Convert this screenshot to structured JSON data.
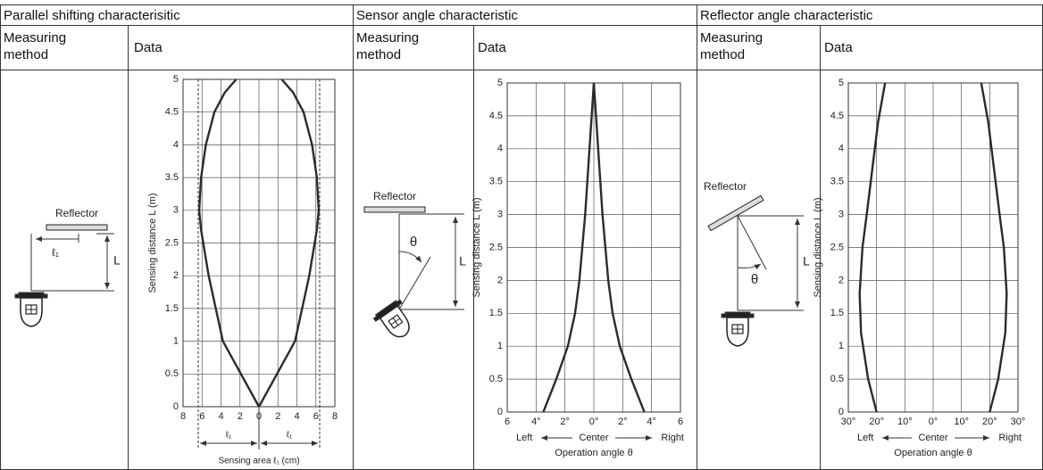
{
  "table": {
    "headers": [
      "Parallel shifting characterisitic",
      "Sensor angle characteristic",
      "Reflector angle characteristic"
    ],
    "subheaders": [
      "Measuring method",
      "Data",
      "Measuring method",
      "Data",
      "Measuring method",
      "Data"
    ]
  },
  "diagrams": [
    {
      "reflector": "Reflector",
      "offset": "ℓ₁",
      "distance": "L"
    },
    {
      "reflector": "Reflector",
      "angle": "θ",
      "distance": "L"
    },
    {
      "reflector": "Reflector",
      "distance": "L",
      "angle": "θ"
    }
  ],
  "chart_data": [
    {
      "type": "line",
      "xlabel": "Sensing area ℓ₁ (cm)",
      "ylabel": "Sensing distance L (m)",
      "span_labels": [
        "ℓ₁",
        "ℓ₁"
      ],
      "xlim": [
        -8,
        8
      ],
      "ylim": [
        0,
        5
      ],
      "grid": true,
      "xticks": [
        {
          "value": -8,
          "label": "8"
        },
        {
          "value": -6,
          "label": "6"
        },
        {
          "value": -4,
          "label": "4"
        },
        {
          "value": -2,
          "label": "2"
        },
        0,
        2,
        4,
        6,
        8
      ],
      "yticks": [
        0,
        0.5,
        1,
        1.5,
        2,
        2.5,
        3,
        3.5,
        4,
        4.5,
        5
      ],
      "series": [
        {
          "color": "#2b2b2b",
          "x": [
            0,
            -1.9,
            -3.8,
            -5.3,
            -6.1,
            -6.3,
            -6.1,
            -5.6,
            -4.7,
            -3.6,
            -2.4
          ],
          "values": [
            0,
            0.5,
            1,
            2,
            2.7,
            3,
            3.5,
            4,
            4.5,
            4.8,
            5
          ]
        },
        {
          "color": "#2b2b2b",
          "x": [
            0,
            1.9,
            3.8,
            5.3,
            6.1,
            6.3,
            6.1,
            5.6,
            4.7,
            3.6,
            2.4
          ],
          "values": [
            0,
            0.5,
            1,
            2,
            2.7,
            3,
            3.5,
            4,
            4.5,
            4.8,
            5
          ]
        }
      ]
    },
    {
      "type": "line",
      "xlabel": "Operation angle θ",
      "ylabel": "Sensing distance L (m)",
      "direction_labels": [
        "Left",
        "Center",
        "Right"
      ],
      "xlim": [
        -6,
        6
      ],
      "ylim": [
        0,
        5
      ],
      "grid": true,
      "xticks": [
        {
          "value": -6,
          "label": "6"
        },
        {
          "value": -4,
          "label": "4°"
        },
        {
          "value": -2,
          "label": "2°"
        },
        {
          "value": 0,
          "label": "0°"
        },
        {
          "value": 2,
          "label": "2°"
        },
        {
          "value": 4,
          "label": "4°"
        },
        6
      ],
      "yticks": [
        0,
        0.5,
        1,
        1.5,
        2,
        2.5,
        3,
        3.5,
        4,
        4.5,
        5
      ],
      "series": [
        {
          "color": "#2b2b2b",
          "x": [
            -3.5,
            -2.6,
            -1.8,
            -1.3,
            -1.0,
            -0.6,
            -0.3,
            0
          ],
          "values": [
            0,
            0.5,
            1,
            1.5,
            2,
            3,
            4,
            5
          ]
        },
        {
          "color": "#2b2b2b",
          "x": [
            3.5,
            2.6,
            1.8,
            1.3,
            1.0,
            0.6,
            0.3,
            0
          ],
          "values": [
            0,
            0.5,
            1,
            1.5,
            2,
            3,
            4,
            5
          ]
        }
      ]
    },
    {
      "type": "line",
      "xlabel": "Operation angle θ",
      "ylabel": "Sensing distance L (m)",
      "direction_labels": [
        "Left",
        "Center",
        "Right"
      ],
      "xlim": [
        -30,
        30
      ],
      "ylim": [
        0,
        5
      ],
      "grid": true,
      "xticks": [
        {
          "value": -30,
          "label": "30°"
        },
        {
          "value": -20,
          "label": "20°"
        },
        {
          "value": -10,
          "label": "10°"
        },
        {
          "value": 0,
          "label": "0°"
        },
        {
          "value": 10,
          "label": "10°"
        },
        {
          "value": 20,
          "label": "20°"
        },
        {
          "value": 30,
          "label": "30°"
        }
      ],
      "yticks": [
        0,
        0.5,
        1,
        1.5,
        2,
        2.5,
        3,
        3.5,
        4,
        4.5,
        5
      ],
      "series": [
        {
          "color": "#2b2b2b",
          "x": [
            -20,
            -23,
            -25.5,
            -26,
            -25,
            -23.5,
            -21.5,
            -19.5,
            -17
          ],
          "values": [
            0,
            0.5,
            1.2,
            1.8,
            2.5,
            3,
            3.7,
            4.4,
            5
          ]
        },
        {
          "color": "#2b2b2b",
          "x": [
            20,
            23,
            25.5,
            26,
            25,
            23.5,
            21.5,
            19.5,
            17
          ],
          "values": [
            0,
            0.5,
            1.2,
            1.8,
            2.5,
            3,
            3.7,
            4.4,
            5
          ]
        }
      ]
    }
  ]
}
